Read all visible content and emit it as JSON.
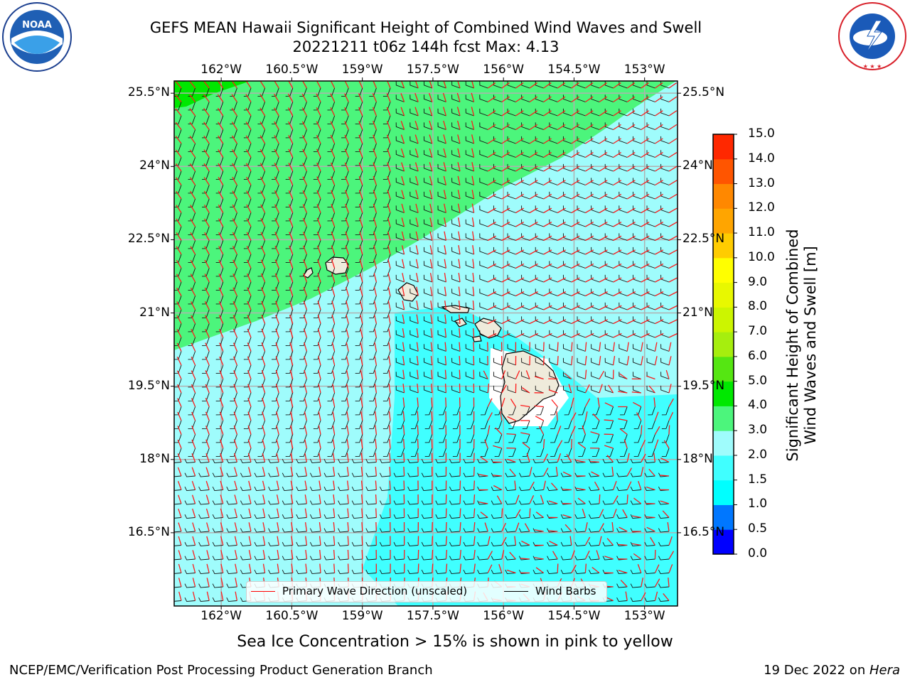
{
  "header": {
    "title_line1": "GEFS MEAN Hawaii Significant Height of Combined Wind Waves and Swell",
    "title_line2": "20221211 t06z 144h fcst   Max: 4.13"
  },
  "logos": {
    "left": {
      "name": "noaa-logo",
      "text": "NOAA",
      "ring_text": "NATIONAL OCEANIC AND ATMOSPHERIC ADMINISTRATION · U.S. DEPARTMENT OF COMMERCE"
    },
    "right": {
      "name": "nws-logo",
      "ring_text": "NATIONAL WEATHER SERVICE"
    }
  },
  "map": {
    "lon_ticks": [
      "162°W",
      "160.5°W",
      "159°W",
      "157.5°W",
      "156°W",
      "154.5°W",
      "153°W"
    ],
    "lat_ticks": [
      "25.5°N",
      "24°N",
      "22.5°N",
      "21°N",
      "19.5°N",
      "18°N",
      "16.5°N"
    ],
    "lon_values": [
      -162,
      -160.5,
      -159,
      -157.5,
      -156,
      -154.5,
      -153
    ],
    "lat_values": [
      25.5,
      24,
      22.5,
      21,
      19.5,
      18,
      16.5
    ],
    "lon_range": [
      -163.0,
      -152.3
    ],
    "lat_range": [
      15.0,
      25.75
    ],
    "grid": true,
    "legend": {
      "placement": "bottom-center",
      "items": [
        {
          "label": "Primary Wave Direction (unscaled)",
          "color": "#ff0000"
        },
        {
          "label": "Wind Barbs",
          "color": "#000000"
        }
      ]
    },
    "land_color": "#efebdb",
    "islands": [
      "Niihau",
      "Kauai",
      "Oahu",
      "Molokai",
      "Lanai",
      "Maui",
      "Kahoolawe",
      "Hawaii"
    ]
  },
  "colorbar": {
    "label_line1": "Significant Height of Combined",
    "label_line2": "Wind Waves and Swell [m]",
    "tick_labels": [
      "0.0",
      "0.5",
      "1.0",
      "1.5",
      "2.0",
      "3.0",
      "4.0",
      "5.0",
      "6.0",
      "7.0",
      "8.0",
      "9.0",
      "10.0",
      "11.0",
      "12.0",
      "13.0",
      "14.0",
      "15.0"
    ],
    "colors": [
      "#0000ff",
      "#0077ff",
      "#00ffff",
      "#40ffff",
      "#9ffcfc",
      "#4cf57c",
      "#00e800",
      "#55e612",
      "#a6ee0e",
      "#ccf500",
      "#e8f800",
      "#ffff00",
      "#ffcc00",
      "#ffa500",
      "#ff8800",
      "#ff5500",
      "#ff2800"
    ]
  },
  "notes": {
    "sea_ice": "Sea Ice Concentration > 15% is shown in pink to yellow"
  },
  "footer": {
    "left": "NCEP/EMC/Verification Post Processing Product Generation Branch",
    "right_prefix": "19 Dec 2022 on ",
    "right_machine": "Hera"
  }
}
